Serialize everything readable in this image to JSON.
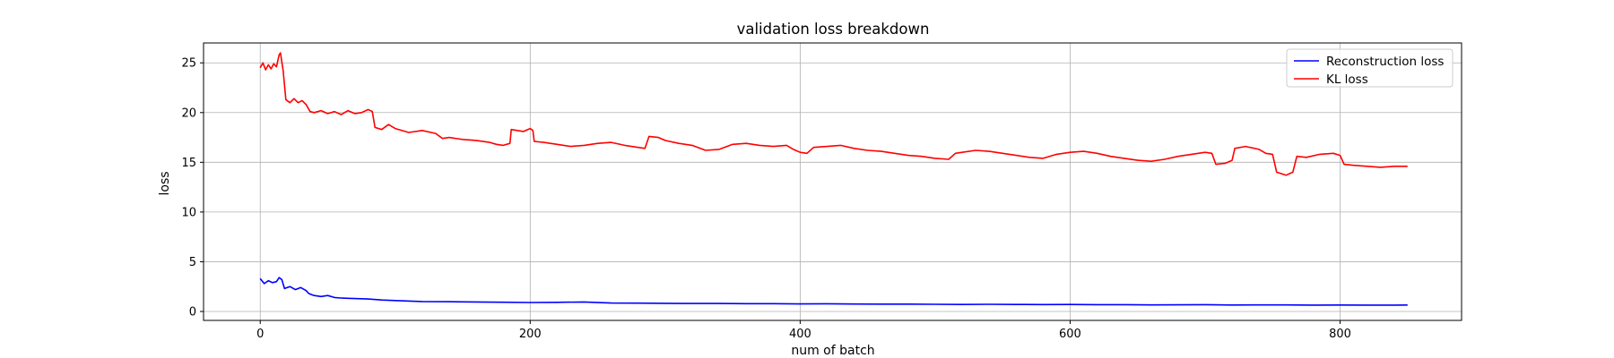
{
  "chart_data": {
    "type": "line",
    "title": "validation loss breakdown",
    "xlabel": "num of batch",
    "ylabel": "loss",
    "xlim": [
      -42,
      890
    ],
    "ylim": [
      -0.9,
      27.0
    ],
    "xticks": [
      0,
      200,
      400,
      600,
      800
    ],
    "yticks": [
      0,
      5,
      10,
      15,
      20,
      25
    ],
    "grid": true,
    "legend_position": "top-right",
    "series": [
      {
        "name": "Reconstruction loss",
        "color": "#0000ff",
        "points": [
          [
            0,
            3.3
          ],
          [
            3,
            2.8
          ],
          [
            6,
            3.1
          ],
          [
            9,
            2.9
          ],
          [
            12,
            3.0
          ],
          [
            14,
            3.4
          ],
          [
            16,
            3.2
          ],
          [
            18,
            2.3
          ],
          [
            22,
            2.5
          ],
          [
            26,
            2.2
          ],
          [
            30,
            2.4
          ],
          [
            34,
            2.1
          ],
          [
            36,
            1.8
          ],
          [
            40,
            1.6
          ],
          [
            45,
            1.5
          ],
          [
            50,
            1.6
          ],
          [
            55,
            1.4
          ],
          [
            60,
            1.35
          ],
          [
            70,
            1.3
          ],
          [
            80,
            1.25
          ],
          [
            90,
            1.15
          ],
          [
            100,
            1.1
          ],
          [
            120,
            1.0
          ],
          [
            140,
            0.98
          ],
          [
            160,
            0.95
          ],
          [
            180,
            0.93
          ],
          [
            200,
            0.9
          ],
          [
            220,
            0.92
          ],
          [
            240,
            0.95
          ],
          [
            260,
            0.85
          ],
          [
            280,
            0.84
          ],
          [
            300,
            0.82
          ],
          [
            320,
            0.8
          ],
          [
            340,
            0.8
          ],
          [
            360,
            0.78
          ],
          [
            380,
            0.78
          ],
          [
            400,
            0.76
          ],
          [
            420,
            0.77
          ],
          [
            440,
            0.75
          ],
          [
            460,
            0.74
          ],
          [
            480,
            0.74
          ],
          [
            500,
            0.72
          ],
          [
            520,
            0.7
          ],
          [
            540,
            0.72
          ],
          [
            560,
            0.7
          ],
          [
            580,
            0.69
          ],
          [
            600,
            0.7
          ],
          [
            620,
            0.68
          ],
          [
            640,
            0.68
          ],
          [
            660,
            0.66
          ],
          [
            680,
            0.67
          ],
          [
            700,
            0.68
          ],
          [
            720,
            0.65
          ],
          [
            740,
            0.66
          ],
          [
            760,
            0.66
          ],
          [
            780,
            0.64
          ],
          [
            800,
            0.65
          ],
          [
            820,
            0.64
          ],
          [
            840,
            0.64
          ],
          [
            850,
            0.65
          ]
        ]
      },
      {
        "name": "KL loss",
        "color": "#ff0000",
        "points": [
          [
            0,
            24.5
          ],
          [
            2,
            25.0
          ],
          [
            4,
            24.3
          ],
          [
            6,
            24.8
          ],
          [
            8,
            24.4
          ],
          [
            10,
            24.9
          ],
          [
            12,
            24.6
          ],
          [
            14,
            25.8
          ],
          [
            15,
            26.0
          ],
          [
            17,
            24.2
          ],
          [
            19,
            21.3
          ],
          [
            22,
            21.0
          ],
          [
            25,
            21.4
          ],
          [
            28,
            21.0
          ],
          [
            31,
            21.2
          ],
          [
            34,
            20.8
          ],
          [
            37,
            20.1
          ],
          [
            40,
            20.0
          ],
          [
            45,
            20.2
          ],
          [
            50,
            19.9
          ],
          [
            55,
            20.1
          ],
          [
            60,
            19.8
          ],
          [
            65,
            20.2
          ],
          [
            70,
            19.9
          ],
          [
            75,
            20.0
          ],
          [
            80,
            20.3
          ],
          [
            83,
            20.1
          ],
          [
            85,
            18.5
          ],
          [
            90,
            18.3
          ],
          [
            95,
            18.8
          ],
          [
            100,
            18.4
          ],
          [
            110,
            18.0
          ],
          [
            120,
            18.2
          ],
          [
            130,
            17.9
          ],
          [
            135,
            17.4
          ],
          [
            140,
            17.5
          ],
          [
            150,
            17.3
          ],
          [
            160,
            17.2
          ],
          [
            170,
            17.0
          ],
          [
            175,
            16.8
          ],
          [
            180,
            16.7
          ],
          [
            185,
            16.9
          ],
          [
            186,
            18.3
          ],
          [
            195,
            18.1
          ],
          [
            200,
            18.4
          ],
          [
            202,
            18.2
          ],
          [
            203,
            17.1
          ],
          [
            210,
            17.0
          ],
          [
            220,
            16.8
          ],
          [
            230,
            16.6
          ],
          [
            240,
            16.7
          ],
          [
            250,
            16.9
          ],
          [
            260,
            17.0
          ],
          [
            270,
            16.7
          ],
          [
            280,
            16.5
          ],
          [
            285,
            16.4
          ],
          [
            288,
            17.6
          ],
          [
            295,
            17.5
          ],
          [
            300,
            17.2
          ],
          [
            310,
            16.9
          ],
          [
            320,
            16.7
          ],
          [
            330,
            16.2
          ],
          [
            340,
            16.3
          ],
          [
            350,
            16.8
          ],
          [
            360,
            16.9
          ],
          [
            370,
            16.7
          ],
          [
            380,
            16.6
          ],
          [
            390,
            16.7
          ],
          [
            395,
            16.3
          ],
          [
            400,
            16.0
          ],
          [
            405,
            15.9
          ],
          [
            410,
            16.5
          ],
          [
            420,
            16.6
          ],
          [
            430,
            16.7
          ],
          [
            440,
            16.4
          ],
          [
            450,
            16.2
          ],
          [
            460,
            16.1
          ],
          [
            470,
            15.9
          ],
          [
            480,
            15.7
          ],
          [
            490,
            15.6
          ],
          [
            500,
            15.4
          ],
          [
            510,
            15.3
          ],
          [
            515,
            15.9
          ],
          [
            520,
            16.0
          ],
          [
            530,
            16.2
          ],
          [
            540,
            16.1
          ],
          [
            550,
            15.9
          ],
          [
            560,
            15.7
          ],
          [
            570,
            15.5
          ],
          [
            580,
            15.4
          ],
          [
            590,
            15.8
          ],
          [
            600,
            16.0
          ],
          [
            610,
            16.1
          ],
          [
            620,
            15.9
          ],
          [
            630,
            15.6
          ],
          [
            640,
            15.4
          ],
          [
            650,
            15.2
          ],
          [
            660,
            15.1
          ],
          [
            670,
            15.3
          ],
          [
            680,
            15.6
          ],
          [
            690,
            15.8
          ],
          [
            700,
            16.0
          ],
          [
            705,
            15.9
          ],
          [
            708,
            14.8
          ],
          [
            715,
            14.9
          ],
          [
            720,
            15.2
          ],
          [
            722,
            16.4
          ],
          [
            730,
            16.6
          ],
          [
            740,
            16.3
          ],
          [
            745,
            15.9
          ],
          [
            750,
            15.8
          ],
          [
            753,
            14.0
          ],
          [
            760,
            13.7
          ],
          [
            765,
            14.0
          ],
          [
            768,
            15.6
          ],
          [
            775,
            15.5
          ],
          [
            785,
            15.8
          ],
          [
            795,
            15.9
          ],
          [
            800,
            15.7
          ],
          [
            803,
            14.8
          ],
          [
            810,
            14.7
          ],
          [
            820,
            14.6
          ],
          [
            830,
            14.5
          ],
          [
            840,
            14.6
          ],
          [
            850,
            14.6
          ]
        ]
      }
    ]
  }
}
